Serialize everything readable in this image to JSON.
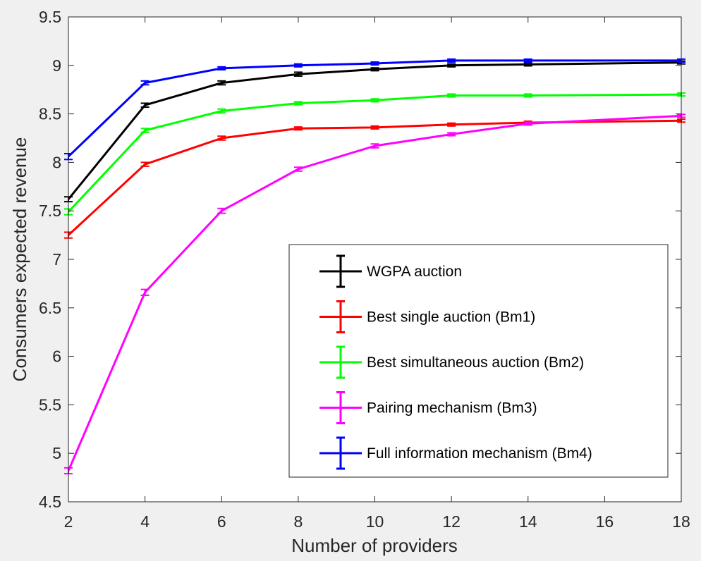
{
  "chart_data": {
    "type": "line",
    "title": "",
    "xlabel": "Number of providers",
    "ylabel": "Consumers expected revenue",
    "xlim": [
      2,
      18
    ],
    "ylim": [
      4.5,
      9.5
    ],
    "xticks": [
      2,
      4,
      6,
      8,
      10,
      12,
      14,
      16,
      18
    ],
    "yticks": [
      4.5,
      5,
      5.5,
      6,
      6.5,
      7,
      7.5,
      8,
      8.5,
      9,
      9.5
    ],
    "xtick_labels": [
      "2",
      "4",
      "6",
      "8",
      "10",
      "12",
      "14",
      "16",
      "18"
    ],
    "ytick_labels": [
      "4.5",
      "5",
      "5.5",
      "6",
      "6.5",
      "7",
      "7.5",
      "8",
      "8.5",
      "9",
      "9.5"
    ],
    "x": [
      2,
      4,
      6,
      8,
      10,
      12,
      14,
      18
    ],
    "legend_position": "bottom-right",
    "series": [
      {
        "name": "WGPA auction",
        "color": "#000000",
        "values": [
          7.62,
          8.59,
          8.82,
          8.91,
          8.96,
          9.0,
          9.01,
          9.03
        ],
        "err": [
          0.025,
          0.02,
          0.02,
          0.02,
          0.015,
          0.015,
          0.015,
          0.015
        ]
      },
      {
        "name": "Best single auction (Bm1)",
        "color": "#ff0000",
        "values": [
          7.25,
          7.98,
          8.25,
          8.35,
          8.36,
          8.39,
          8.41,
          8.43
        ],
        "err": [
          0.03,
          0.02,
          0.02,
          0.015,
          0.015,
          0.015,
          0.015,
          0.015
        ]
      },
      {
        "name": "Best simultaneous auction (Bm2)",
        "color": "#00ff00",
        "values": [
          7.49,
          8.33,
          8.53,
          8.61,
          8.64,
          8.69,
          8.69,
          8.7
        ],
        "err": [
          0.03,
          0.02,
          0.02,
          0.015,
          0.015,
          0.015,
          0.015,
          0.015
        ]
      },
      {
        "name": "Pairing mechanism (Bm3)",
        "color": "#ff00ff",
        "values": [
          4.82,
          6.66,
          7.5,
          7.93,
          8.17,
          8.29,
          8.4,
          8.48
        ],
        "err": [
          0.03,
          0.03,
          0.025,
          0.02,
          0.02,
          0.015,
          0.015,
          0.015
        ]
      },
      {
        "name": "Full information mechanism (Bm4)",
        "color": "#0000ff",
        "values": [
          8.06,
          8.82,
          8.97,
          9.0,
          9.02,
          9.05,
          9.05,
          9.05
        ],
        "err": [
          0.03,
          0.02,
          0.015,
          0.015,
          0.015,
          0.015,
          0.015,
          0.015
        ]
      }
    ]
  }
}
